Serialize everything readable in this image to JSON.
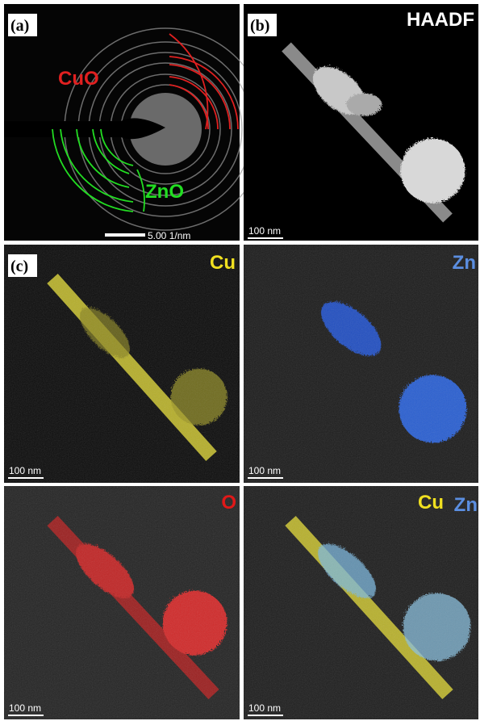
{
  "panels": [
    {
      "label": "(a)",
      "annotations": [
        "CuO",
        "ZnO"
      ],
      "scale_bar": "5.00 1/nm"
    },
    {
      "label": "(b)",
      "title": "HAADF",
      "scale_bar": "100 nm"
    },
    {
      "label": "(c)",
      "title": "Cu",
      "scale_bar": "100 nm"
    },
    {
      "title": "Zn",
      "scale_bar": "100 nm"
    },
    {
      "title": "O",
      "scale_bar": "100 nm"
    },
    {
      "titles": [
        "Cu",
        "Zn"
      ],
      "scale_bar": "100 nm"
    }
  ]
}
